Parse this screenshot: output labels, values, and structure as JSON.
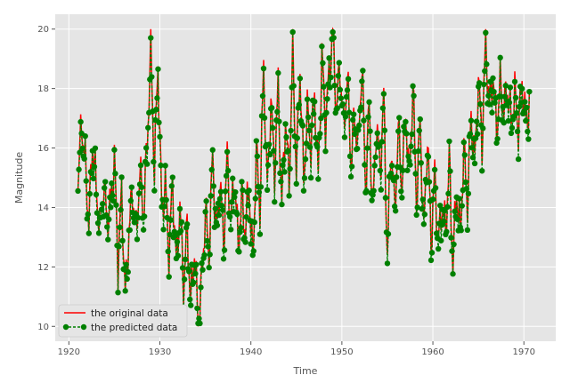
{
  "chart_data": {
    "type": "line",
    "title": "",
    "xlabel": "Time",
    "ylabel": "Magnitude",
    "xlim": [
      1918.5,
      1973.5
    ],
    "ylim": [
      9.5,
      20.5
    ],
    "xticks": [
      1920,
      1930,
      1940,
      1950,
      1960,
      1970
    ],
    "yticks": [
      10,
      12,
      14,
      16,
      18,
      20
    ],
    "grid": true,
    "legend_position": "lower-left",
    "colors": {
      "original": "#ff0000",
      "predicted": "#008000",
      "background": "#e5e5e5",
      "grid": "#ffffff"
    },
    "series": [
      {
        "name": "the original data",
        "style": "solid-line",
        "x": [
          1921.0,
          1921.4,
          1921.8,
          1922.2,
          1922.6,
          1923.0,
          1923.4,
          1923.8,
          1924.2,
          1924.6,
          1925.0,
          1925.4,
          1925.8,
          1926.2,
          1926.6,
          1927.0,
          1927.4,
          1927.8,
          1928.2,
          1928.6,
          1929.0,
          1929.4,
          1929.8,
          1930.2,
          1930.6,
          1931.0,
          1931.4,
          1931.8,
          1932.2,
          1932.6,
          1933.0,
          1933.4,
          1933.8,
          1934.2,
          1934.6,
          1935.0,
          1935.4,
          1935.8,
          1936.2,
          1936.6,
          1937.0,
          1937.4,
          1937.8,
          1938.2,
          1938.6,
          1939.0,
          1939.4,
          1939.8,
          1940.2,
          1940.6,
          1941.0,
          1941.4,
          1941.8,
          1942.2,
          1942.6,
          1943.0,
          1943.4,
          1943.8,
          1944.2,
          1944.6,
          1945.0,
          1945.4,
          1945.8,
          1946.2,
          1946.6,
          1947.0,
          1947.4,
          1947.8,
          1948.2,
          1948.6,
          1949.0,
          1949.4,
          1949.8,
          1950.2,
          1950.6,
          1951.0,
          1951.4,
          1951.8,
          1952.2,
          1952.6,
          1953.0,
          1953.4,
          1953.8,
          1954.2,
          1954.6,
          1955.0,
          1955.4,
          1955.8,
          1956.2,
          1956.6,
          1957.0,
          1957.4,
          1957.8,
          1958.2,
          1958.6,
          1959.0,
          1959.4,
          1959.8,
          1960.2,
          1960.6,
          1961.0,
          1961.4,
          1961.8,
          1962.2,
          1962.6,
          1963.0,
          1963.4,
          1963.8,
          1964.2,
          1964.6,
          1965.0,
          1965.4,
          1965.8,
          1966.2,
          1966.6,
          1967.0,
          1967.4,
          1967.8,
          1968.2,
          1968.6,
          1969.0,
          1969.4,
          1969.8,
          1970.2,
          1970.6
        ],
        "y": [
          14.8,
          16.9,
          15.5,
          13.5,
          16.2,
          14.7,
          13.2,
          14.8,
          13.6,
          14.1,
          15.7,
          12.1,
          14.5,
          11.0,
          13.2,
          14.6,
          13.1,
          15.2,
          13.8,
          16.1,
          19.4,
          15.3,
          18.9,
          13.9,
          14.8,
          12.4,
          14.9,
          12.1,
          14.1,
          11.4,
          13.3,
          10.8,
          12.6,
          10.1,
          11.5,
          13.9,
          12.4,
          15.8,
          13.1,
          14.9,
          12.9,
          15.7,
          13.5,
          15.1,
          12.7,
          14.3,
          13.2,
          14.8,
          12.1,
          15.9,
          14.0,
          18.8,
          14.6,
          17.6,
          15.2,
          18.1,
          14.1,
          17.0,
          14.8,
          19.3,
          15.2,
          18.7,
          14.9,
          17.2,
          16.1,
          17.8,
          15.0,
          19.1,
          16.8,
          18.5,
          19.9,
          17.3,
          18.8,
          16.6,
          18.4,
          15.6,
          17.1,
          16.0,
          18.9,
          14.7,
          17.4,
          13.8,
          16.9,
          15.2,
          17.7,
          12.3,
          16.2,
          13.9,
          16.6,
          14.8,
          17.3,
          14.9,
          18.1,
          14.2,
          16.9,
          13.1,
          16.4,
          12.9,
          15.1,
          12.8,
          14.1,
          13.2,
          15.6,
          12.1,
          14.6,
          13.1,
          15.9,
          14.2,
          17.1,
          15.5,
          18.3,
          16.2,
          19.6,
          17.4,
          18.5,
          16.6,
          18.2,
          17.3,
          18.0,
          16.9,
          17.8,
          16.7,
          18.2,
          16.9,
          17.5
        ],
        "note_y_are_base_envelope": true
      },
      {
        "name": "the predicted data",
        "style": "dashed-line-with-circle-markers",
        "x": [],
        "y": []
      }
    ]
  }
}
